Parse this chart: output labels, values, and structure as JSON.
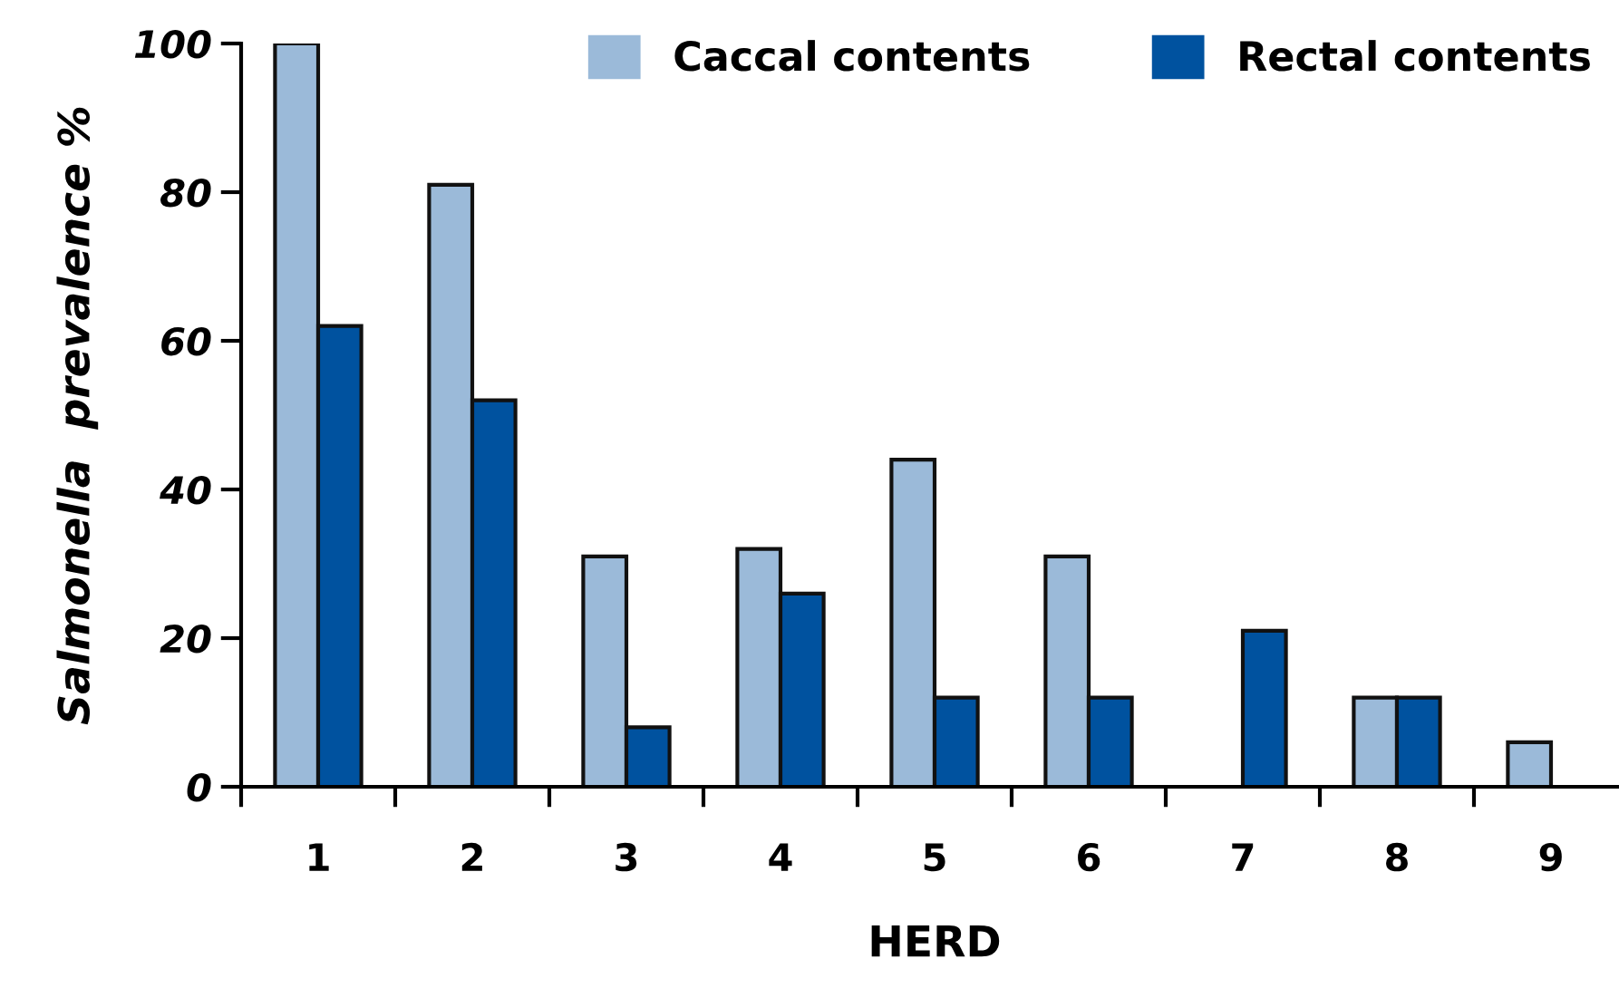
{
  "chart_data": {
    "type": "bar",
    "xlabel": "HERD",
    "ylabel": "Salmonella  prevalence %",
    "categories": [
      "1",
      "2",
      "3",
      "4",
      "5",
      "6",
      "7",
      "8",
      "9"
    ],
    "series": [
      {
        "name": "Caccal contents",
        "color": "#9bbad9",
        "values": [
          100,
          81,
          31,
          32,
          44,
          31,
          0,
          12,
          6
        ]
      },
      {
        "name": "Rectal contents",
        "color": "#00529f",
        "values": [
          62,
          52,
          8,
          26,
          12,
          12,
          21,
          12,
          0
        ]
      }
    ],
    "ylim": [
      0,
      100
    ],
    "yticks": [
      0,
      20,
      40,
      60,
      80,
      100
    ],
    "grid": false,
    "legend": "top right"
  }
}
